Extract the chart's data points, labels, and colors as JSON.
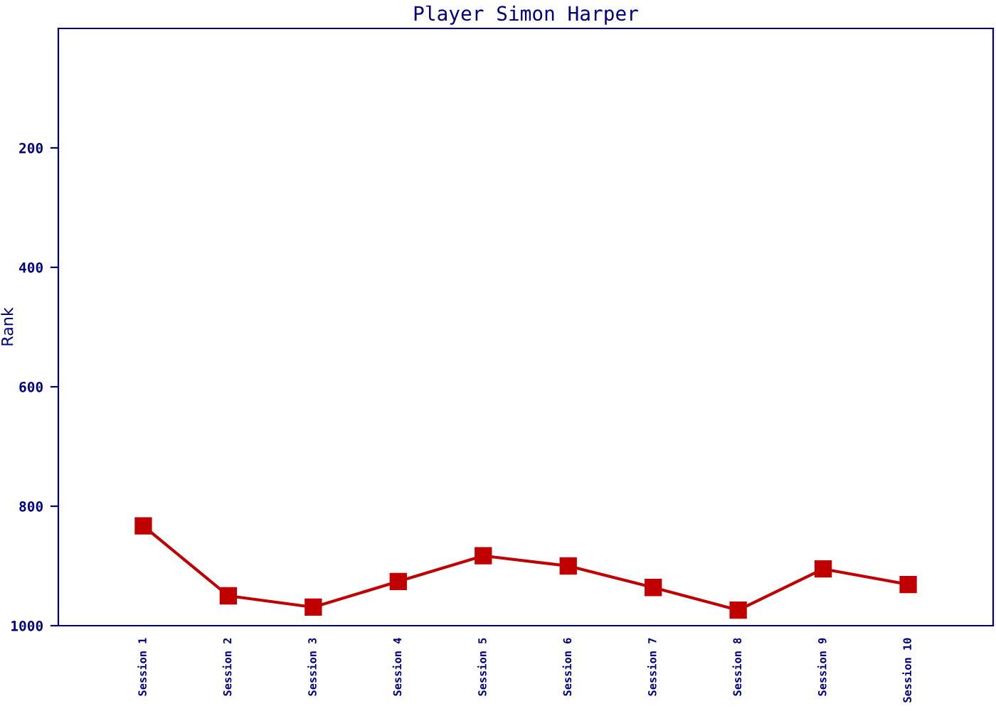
{
  "chart_data": {
    "type": "line",
    "title": "Player Simon Harper",
    "ylabel": "Rank",
    "categories": [
      "Session 1",
      "Session 2",
      "Session 3",
      "Session 4",
      "Session 5",
      "Session 6",
      "Session 7",
      "Session 8",
      "Session 9",
      "Session 10"
    ],
    "series": [
      {
        "color": "#c00000",
        "values": [
          833,
          950,
          969,
          926,
          883,
          900,
          936,
          974,
          905,
          931
        ]
      }
    ],
    "ylim": [
      1000,
      0
    ],
    "yticks": [
      200,
      400,
      600,
      800,
      1000
    ],
    "grid": false,
    "marker": "square",
    "line_style": "solid"
  }
}
